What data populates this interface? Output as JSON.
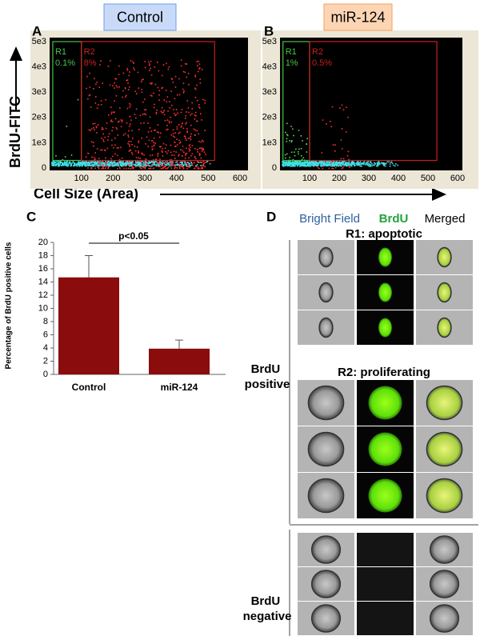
{
  "chart_data": [
    {
      "type": "scatter",
      "panel": "A",
      "title": "Control",
      "title_background": "#c9daf8",
      "title_border": "#6d9eeb",
      "xlim": [
        0,
        600
      ],
      "xticks": [
        100,
        200,
        300,
        400,
        500,
        600
      ],
      "ylim": [
        0,
        5000
      ],
      "yticks": [
        0,
        {
          "value": 1000,
          "label": "1e3"
        },
        {
          "value": 2000,
          "label": "2e3"
        },
        {
          "value": 3000,
          "label": "3e3"
        },
        {
          "value": 4000,
          "label": "4e3"
        },
        {
          "value": 5000,
          "label": "5e3"
        }
      ],
      "gates": [
        {
          "name": "R1",
          "percent": 0.1,
          "percent_label": "0.1%",
          "color": "#49c24a",
          "xrange": [
            10,
            100
          ],
          "yrange": [
            300,
            5000
          ]
        },
        {
          "name": "R2",
          "percent": 8,
          "percent_label": "8%",
          "color": "#c8201e",
          "xrange": [
            100,
            520
          ],
          "yrange": [
            300,
            5000
          ]
        }
      ]
    },
    {
      "type": "scatter",
      "panel": "B",
      "title": "miR-124",
      "title_background": "#fcd5b4",
      "title_border": "#f6a15a",
      "xlim": [
        0,
        600
      ],
      "xticks": [
        100,
        200,
        300,
        400,
        500,
        600
      ],
      "ylim": [
        0,
        5000
      ],
      "yticks": [
        0,
        {
          "value": 1000,
          "label": "1e3"
        },
        {
          "value": 2000,
          "label": "2e3"
        },
        {
          "value": 3000,
          "label": "3e3"
        },
        {
          "value": 4000,
          "label": "4e3"
        },
        {
          "value": 5000,
          "label": "5e3"
        }
      ],
      "gates": [
        {
          "name": "R1",
          "percent": 1,
          "percent_label": "1%",
          "color": "#49c24a",
          "xrange": [
            10,
            100
          ],
          "yrange": [
            300,
            5000
          ]
        },
        {
          "name": "R2",
          "percent": 0.5,
          "percent_label": "0.5%",
          "color": "#c8201e",
          "xrange": [
            100,
            530
          ],
          "yrange": [
            300,
            5000
          ]
        }
      ]
    },
    {
      "type": "bar",
      "panel": "C",
      "ylabel": "Percentage of BrdU positive cells",
      "categories": [
        "Control",
        "miR-124"
      ],
      "values": [
        14.7,
        3.9
      ],
      "errors": [
        3.3,
        1.3
      ],
      "color": "#8b0c0c",
      "ylim": [
        0,
        20
      ],
      "yticks": [
        0,
        2,
        4,
        6,
        8,
        10,
        12,
        14,
        16,
        18,
        20
      ],
      "annotation": "p<0.05"
    }
  ],
  "shared_axes": {
    "ylabel": "BrdU-FITC",
    "xlabel": "Cell Size (Area)"
  },
  "image_panel": {
    "panel": "D",
    "columns": [
      "Bright Field",
      "BrdU",
      "Merged"
    ],
    "groups": [
      {
        "label": "BrdU positive",
        "subsets": [
          {
            "title": "R1: apoptotic"
          },
          {
            "title": "R2: proliferating"
          }
        ]
      },
      {
        "label": "BrdU negative"
      }
    ]
  }
}
